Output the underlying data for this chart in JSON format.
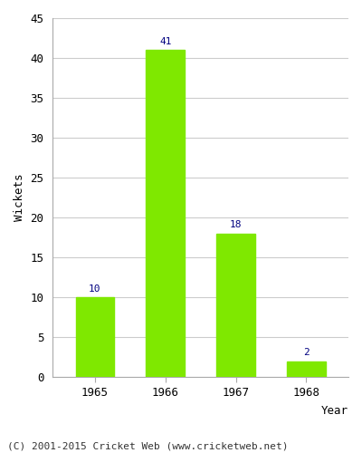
{
  "years": [
    "1965",
    "1966",
    "1967",
    "1968"
  ],
  "values": [
    10,
    41,
    18,
    2
  ],
  "bar_color": "#7FE800",
  "label_color": "#000080",
  "ylabel": "Wickets",
  "xlabel": "Year",
  "ylim": [
    0,
    45
  ],
  "yticks": [
    0,
    5,
    10,
    15,
    20,
    25,
    30,
    35,
    40,
    45
  ],
  "title": "",
  "footer": "(C) 2001-2015 Cricket Web (www.cricketweb.net)",
  "background_color": "#ffffff",
  "grid_color": "#cccccc",
  "label_color_bar": "#000080",
  "bar_label_fontsize": 8,
  "axis_fontsize": 9,
  "footer_fontsize": 8,
  "ylabel_fontsize": 9
}
